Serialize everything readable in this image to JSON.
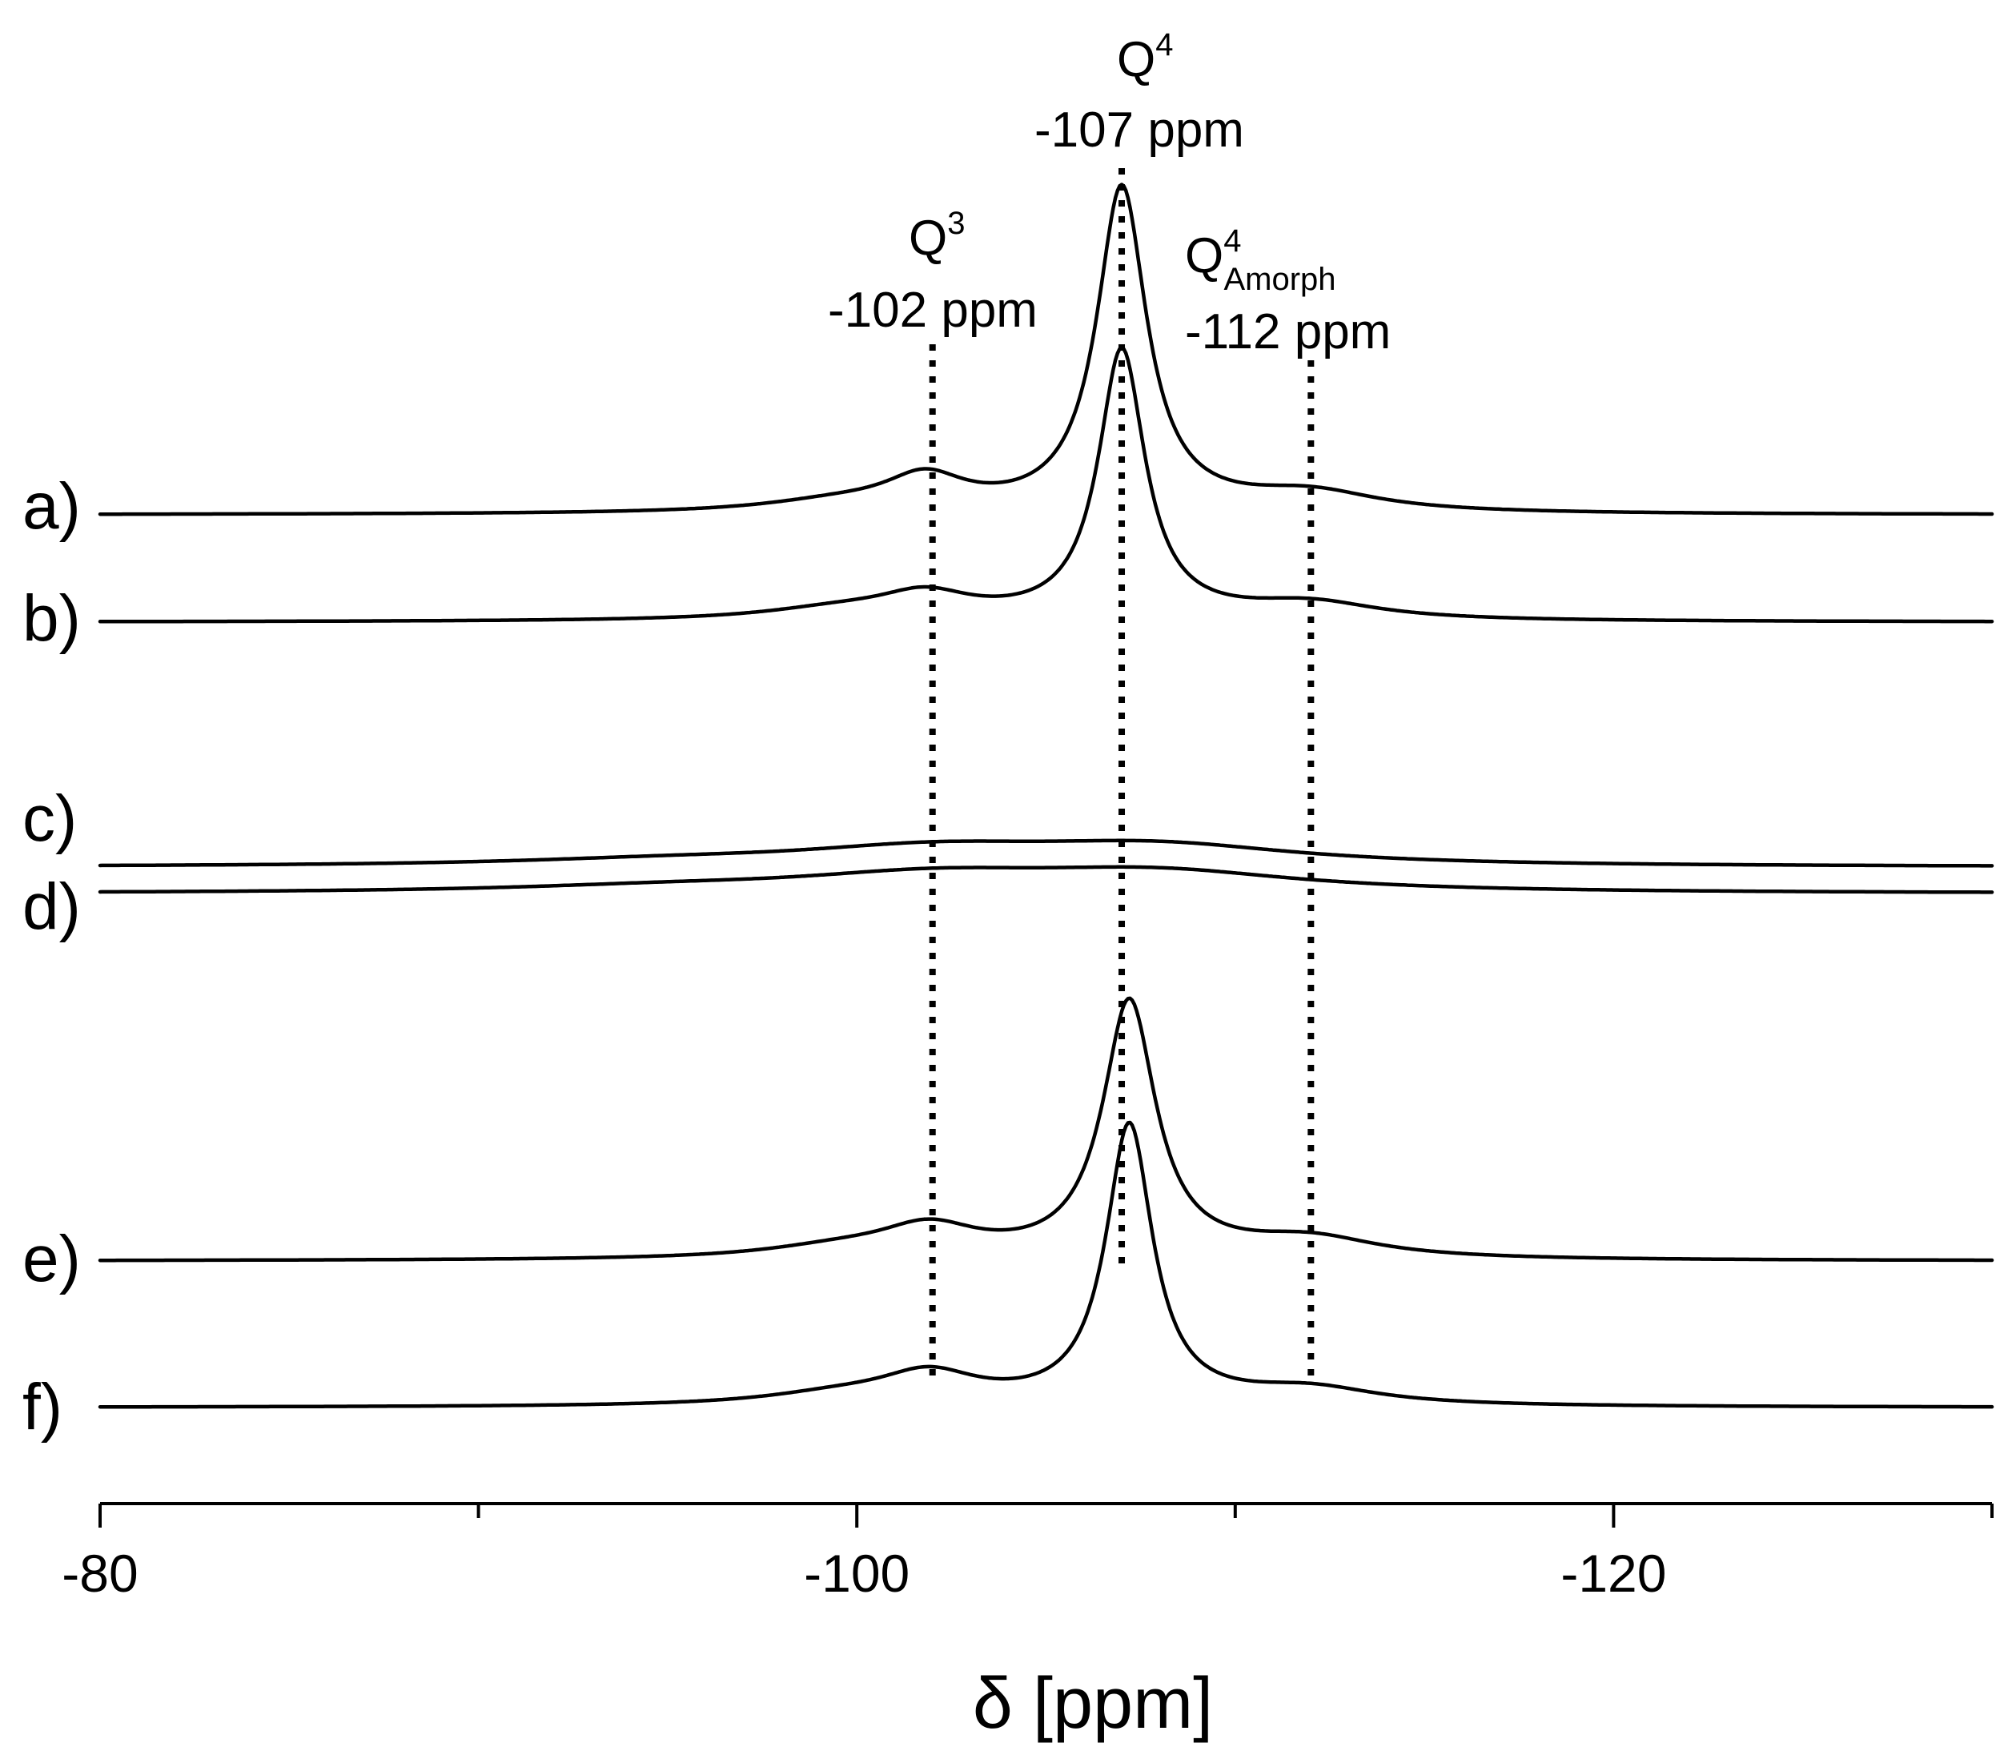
{
  "chart_data": {
    "type": "line",
    "title": "",
    "xlabel": "δ [ppm]",
    "ylabel": "",
    "xlim": [
      -80,
      -130
    ],
    "x_reversed": true,
    "xticks_major": [
      -80,
      -100,
      -120
    ],
    "xticks_minor": [
      -90,
      -110,
      -130
    ],
    "tick_labels": [
      "-80",
      "-100",
      "-120"
    ],
    "grid": false,
    "legend": "none",
    "reference_lines": [
      {
        "x": -102,
        "label_main": "Q",
        "label_sup": "3",
        "label_sub": "",
        "label_value": "-102 ppm"
      },
      {
        "x": -107,
        "label_main": "Q",
        "label_sup": "4",
        "label_sub": "",
        "label_value": "-107 ppm"
      },
      {
        "x": -112,
        "label_main": "Q",
        "label_sup": "4",
        "label_sub": "Amorph",
        "label_value": "-112 ppm"
      }
    ],
    "series": [
      {
        "name": "a)",
        "baseline": 0.0,
        "peaks": [
          {
            "center": -107.0,
            "height": 1.0,
            "width": 0.8
          },
          {
            "center": -101.8,
            "height": 0.1,
            "width": 1.3
          },
          {
            "center": -112.0,
            "height": 0.06,
            "width": 2.2
          },
          {
            "center": -99.5,
            "height": 0.03,
            "width": 2.5
          }
        ]
      },
      {
        "name": "b)",
        "baseline": 0.0,
        "peaks": [
          {
            "center": -107.0,
            "height": 0.8,
            "width": 0.75
          },
          {
            "center": -101.8,
            "height": 0.07,
            "width": 1.5
          },
          {
            "center": -112.0,
            "height": 0.05,
            "width": 2.2
          },
          {
            "center": -99.5,
            "height": 0.03,
            "width": 2.5
          }
        ]
      },
      {
        "name": "c)",
        "baseline": 0.0,
        "peaks": [
          {
            "center": -102.0,
            "height": 0.07,
            "width": 4.5
          },
          {
            "center": -108.0,
            "height": 0.08,
            "width": 4.5
          },
          {
            "center": -95.0,
            "height": 0.02,
            "width": 5.0
          }
        ]
      },
      {
        "name": "d)",
        "baseline": 0.0,
        "peaks": [
          {
            "center": -102.0,
            "height": 0.07,
            "width": 4.5
          },
          {
            "center": -108.0,
            "height": 0.08,
            "width": 4.5
          },
          {
            "center": -95.0,
            "height": 0.02,
            "width": 5.0
          }
        ]
      },
      {
        "name": "e)",
        "baseline": 0.0,
        "peaks": [
          {
            "center": -107.2,
            "height": 0.78,
            "width": 0.85
          },
          {
            "center": -101.9,
            "height": 0.09,
            "width": 1.6
          },
          {
            "center": -112.0,
            "height": 0.06,
            "width": 2.2
          },
          {
            "center": -99.5,
            "height": 0.03,
            "width": 2.5
          }
        ]
      },
      {
        "name": "f)",
        "baseline": 0.0,
        "peaks": [
          {
            "center": -107.2,
            "height": 0.85,
            "width": 0.75
          },
          {
            "center": -101.9,
            "height": 0.09,
            "width": 1.6
          },
          {
            "center": -112.0,
            "height": 0.05,
            "width": 2.2
          },
          {
            "center": -99.5,
            "height": 0.03,
            "width": 2.5
          }
        ]
      }
    ]
  }
}
